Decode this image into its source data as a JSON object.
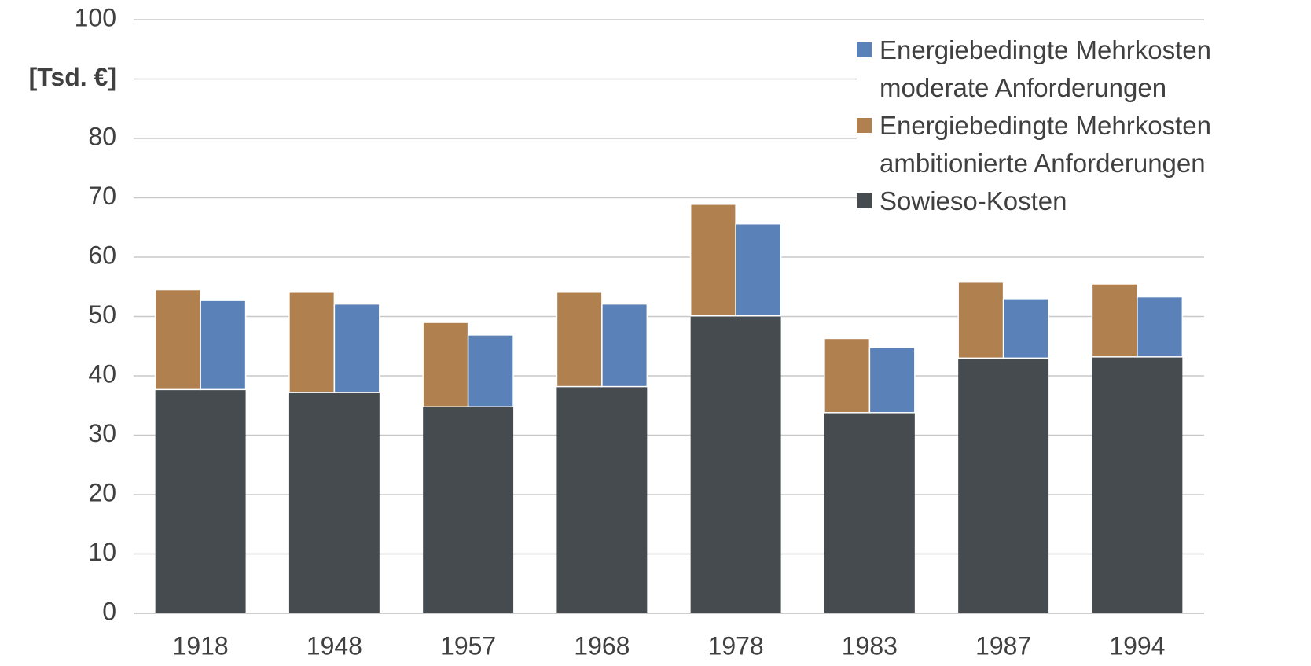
{
  "chart_data": {
    "type": "bar",
    "categories": [
      "1918",
      "1948",
      "1957",
      "1968",
      "1978",
      "1983",
      "1987",
      "1994"
    ],
    "series": [
      {
        "name": "Sowieso-Kosten",
        "color": "#464b4f",
        "values": [
          37.7,
          37.2,
          34.8,
          38.2,
          50.1,
          33.8,
          43.0,
          43.2
        ]
      },
      {
        "name": "Energiebedingte Mehrkosten ambitionierte Anforderungen",
        "color": "#b1804f",
        "values": [
          16.8,
          17.0,
          14.2,
          16.0,
          18.8,
          12.5,
          12.8,
          12.3
        ]
      },
      {
        "name": "Energiebedingte Mehrkosten moderate Anforderungen",
        "color": "#5a82b8",
        "values": [
          15.0,
          14.9,
          12.1,
          13.9,
          15.5,
          11.0,
          10.0,
          10.1
        ]
      }
    ],
    "ylim": [
      0,
      100
    ],
    "yticks": [
      0,
      10,
      20,
      30,
      40,
      50,
      60,
      70,
      80,
      {
        "value": 90,
        "label": "[Tsd. €]"
      },
      100
    ],
    "grid": true,
    "legend": "top-right"
  }
}
